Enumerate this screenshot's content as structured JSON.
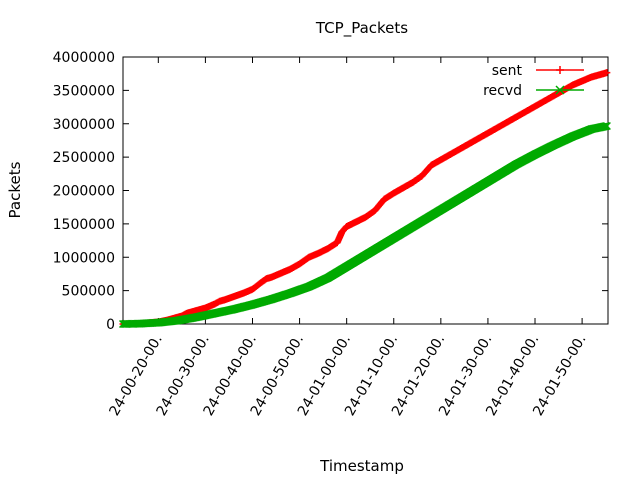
{
  "chart_data": {
    "type": "line",
    "title": "TCP_Packets",
    "xlabel": "Timestamp",
    "ylabel": "Packets",
    "ylim": [
      0,
      4000000
    ],
    "yticks": [
      0,
      500000,
      1000000,
      1500000,
      2000000,
      2500000,
      3000000,
      3500000,
      4000000
    ],
    "yticklabels": [
      "0",
      "500000",
      "1000000",
      "1500000",
      "2000000",
      "2500000",
      "3000000",
      "3500000",
      "4000000"
    ],
    "xlim_minutes": [
      12.5,
      115.5
    ],
    "xtick_minutes": [
      20,
      30,
      40,
      50,
      60,
      70,
      80,
      90,
      100,
      110
    ],
    "xticklabels": [
      "24-00-20-00.",
      "24-00-30-00.",
      "24-00-40-00.",
      "24-00-50-00.",
      "24-01-00-00.",
      "24-01-10-00.",
      "24-01-20-00.",
      "24-01-30-00.",
      "24-01-40-00.",
      "24-01-50-00."
    ],
    "legend_position": "top-right",
    "grid": false,
    "series": [
      {
        "name": "sent",
        "color": "#ff0000",
        "marker": "+",
        "x_minutes": [
          12.5,
          16,
          20,
          22,
          24,
          25,
          26,
          27,
          28,
          30,
          32,
          33,
          34,
          36,
          38,
          40,
          42,
          43,
          44,
          46,
          48,
          50,
          52,
          53,
          54,
          56,
          58,
          59,
          60,
          62,
          64,
          66,
          68,
          70,
          72,
          74,
          76,
          78,
          80,
          82,
          84,
          86,
          88,
          90,
          92,
          94,
          96,
          98,
          100,
          102,
          104,
          106,
          108,
          110,
          112,
          114,
          115.5
        ],
        "values": [
          0,
          5000,
          30000,
          60000,
          100000,
          120000,
          160000,
          180000,
          200000,
          240000,
          300000,
          340000,
          360000,
          410000,
          460000,
          520000,
          630000,
          680000,
          700000,
          760000,
          820000,
          900000,
          1000000,
          1030000,
          1060000,
          1130000,
          1220000,
          1380000,
          1460000,
          1530000,
          1600000,
          1700000,
          1870000,
          1960000,
          2040000,
          2120000,
          2220000,
          2380000,
          2460000,
          2540000,
          2620000,
          2700000,
          2780000,
          2860000,
          2940000,
          3020000,
          3100000,
          3180000,
          3260000,
          3340000,
          3420000,
          3500000,
          3580000,
          3640000,
          3700000,
          3740000,
          3770000
        ]
      },
      {
        "name": "recvd",
        "color": "#00aa00",
        "marker": "x",
        "x_minutes": [
          12.5,
          16,
          20,
          24,
          28,
          32,
          36,
          40,
          44,
          48,
          52,
          56,
          60,
          64,
          68,
          72,
          76,
          80,
          84,
          88,
          92,
          96,
          100,
          104,
          108,
          112,
          115.5
        ],
        "values": [
          0,
          5000,
          20000,
          50000,
          100000,
          160000,
          220000,
          290000,
          370000,
          460000,
          560000,
          690000,
          860000,
          1030000,
          1200000,
          1370000,
          1540000,
          1710000,
          1880000,
          2050000,
          2220000,
          2390000,
          2540000,
          2680000,
          2810000,
          2920000,
          2970000
        ]
      }
    ]
  }
}
